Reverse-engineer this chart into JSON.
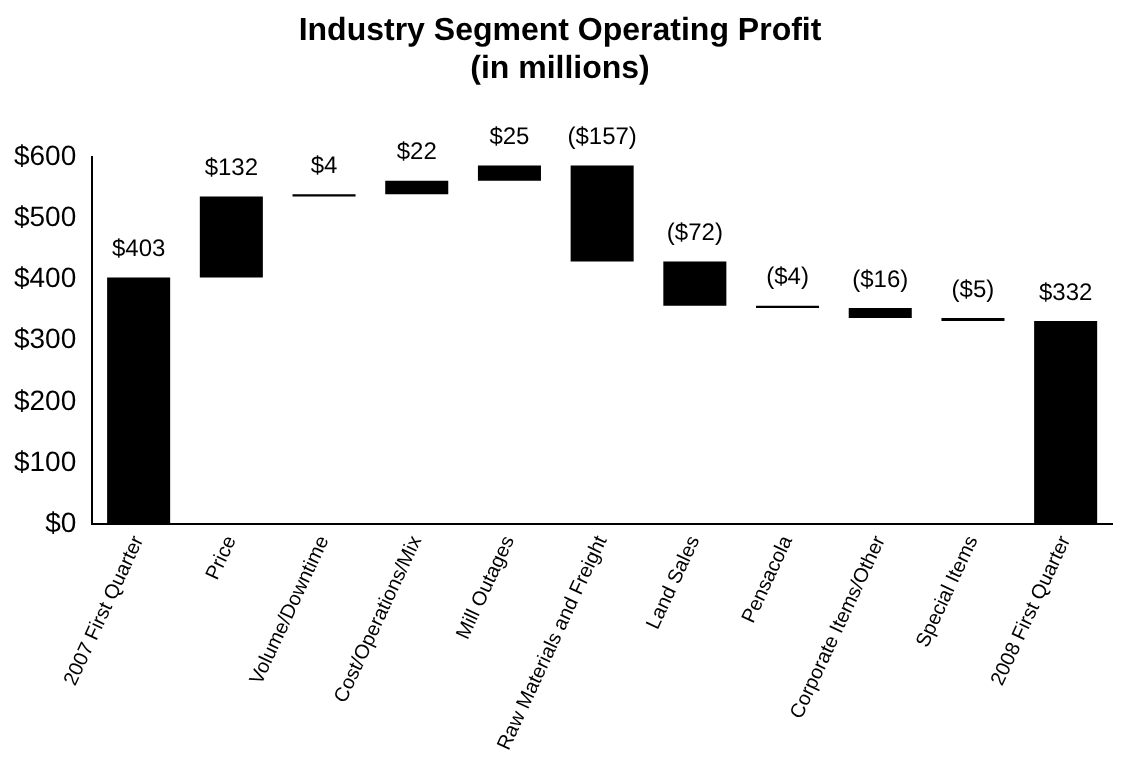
{
  "chart_data": {
    "type": "bar",
    "title": "Industry Segment Operating Profit\n(in millions)",
    "categories": [
      "2007 First Quarter",
      "Price",
      "Volume/Downtime",
      "Cost/Operations/Mix",
      "Mill Outages",
      "Raw Materials and Freight",
      "Land Sales",
      "Pensacola",
      "Corporate Items/Other",
      "Special Items",
      "2008 First Quarter"
    ],
    "values": [
      403,
      132,
      4,
      22,
      25,
      -157,
      -72,
      -4,
      -16,
      -5,
      332
    ],
    "base": [
      0,
      403,
      535,
      539,
      561,
      586,
      429,
      357,
      353,
      337,
      0
    ],
    "color": "#000000",
    "value_labels": [
      "$403",
      "$132",
      "$4",
      "$22",
      "$25",
      "($157)",
      "($72)",
      "($4)",
      "($16)",
      "($5)",
      "$332"
    ],
    "ylim": [
      0,
      600
    ],
    "yticks": [
      {
        "value": 0,
        "label": "$0"
      },
      {
        "value": 100,
        "label": "$100"
      },
      {
        "value": 200,
        "label": "$200"
      },
      {
        "value": 300,
        "label": "$300"
      },
      {
        "value": 400,
        "label": "$400"
      },
      {
        "value": 500,
        "label": "$500"
      },
      {
        "value": 600,
        "label": "$600"
      }
    ],
    "grid": false,
    "legend": false
  }
}
